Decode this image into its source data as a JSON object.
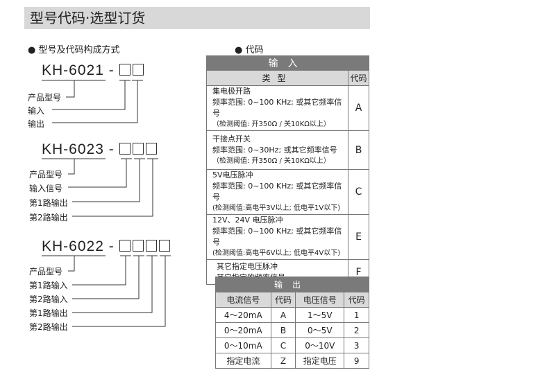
{
  "title": "型号代码·选型订货",
  "left": {
    "heading": "型号及代码构成方式",
    "models": [
      {
        "model": "KH-6021",
        "labels": [
          "产品型号",
          "输入",
          "输出"
        ]
      },
      {
        "model": "KH-6023",
        "labels": [
          "产品型号",
          "输入信号",
          "第1路输出",
          "第2路输出"
        ]
      },
      {
        "model": "KH-6022",
        "labels": [
          "产品型号",
          "第1路输入",
          "第2路输入",
          "第1路输出",
          "第2路输出"
        ]
      }
    ]
  },
  "right": {
    "heading": "代码",
    "input": {
      "title": "输入",
      "col_type": "类型",
      "col_code": "代码",
      "rows": [
        {
          "l1": "集电极开路",
          "l2": "频率范围: 0~100 KHz; 或其它频率信号",
          "l3": "（检测阈值: 开350Ω / 关10KΩ以上）",
          "code": "A"
        },
        {
          "l1": "干接点开关",
          "l2": "频率范围: 0~30Hz; 或其它频率信号",
          "l3": "（检测阈值: 开350Ω / 关10KΩ以上）",
          "code": "B"
        },
        {
          "l1": "5V电压脉冲",
          "l2": "频率范围: 0~100 KHz; 或其它频率信号",
          "l3": "(检测阈值:高电平3V以上; 低电平1V以下)",
          "code": "C"
        },
        {
          "l1": "12V、24V 电压脉冲",
          "l2": "频率范围: 0~100 KHz; 或其它频率信号",
          "l3": "(检测阈值:高电平6V以上; 低电平4V以下)",
          "code": "E"
        },
        {
          "l1": "其它指定电压脉冲",
          "l2": "其它指定的频率信号",
          "l3": "",
          "code": "F"
        }
      ]
    },
    "output": {
      "title": "输出",
      "headers": [
        "电流信号",
        "代码",
        "电压信号",
        "代码"
      ],
      "rows": [
        [
          "4～20mA",
          "A",
          "1～5V",
          "1"
        ],
        [
          "0～20mA",
          "B",
          "0～5V",
          "2"
        ],
        [
          "0～10mA",
          "C",
          "0～10V",
          "3"
        ],
        [
          "指定电流",
          "Z",
          "指定电压",
          "9"
        ]
      ]
    }
  }
}
